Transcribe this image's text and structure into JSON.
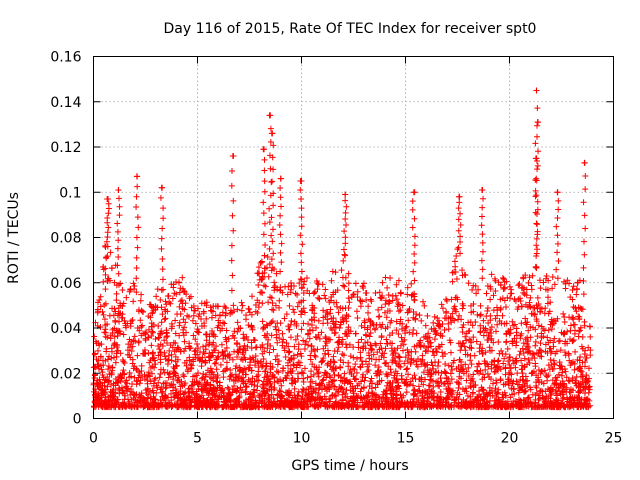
{
  "chart_data": {
    "type": "scatter",
    "title": "Day 116 of 2015, Rate Of TEC Index for receiver spt0",
    "xlabel": "GPS time / hours",
    "ylabel": "ROTI / TECUs",
    "xlim": [
      0,
      25
    ],
    "ylim": [
      0,
      0.16
    ],
    "x_ticks": [
      "0",
      "5",
      "10",
      "15",
      "20",
      "25"
    ],
    "y_ticks": [
      "0",
      "0.02",
      "0.04",
      "0.06",
      "0.08",
      "0.1",
      "0.12",
      "0.14",
      "0.16"
    ],
    "grid": true,
    "marker": "plus",
    "color": "#ff0000",
    "x_range_observed": [
      0,
      23.9
    ],
    "y_range_observed": [
      0.005,
      0.145
    ],
    "notable_peaks": [
      {
        "x": 0.7,
        "y": 0.097
      },
      {
        "x": 1.2,
        "y": 0.101
      },
      {
        "x": 2.1,
        "y": 0.107
      },
      {
        "x": 3.3,
        "y": 0.102
      },
      {
        "x": 6.7,
        "y": 0.116
      },
      {
        "x": 8.2,
        "y": 0.119
      },
      {
        "x": 8.5,
        "y": 0.134
      },
      {
        "x": 8.6,
        "y": 0.126
      },
      {
        "x": 9.0,
        "y": 0.106
      },
      {
        "x": 10.0,
        "y": 0.105
      },
      {
        "x": 12.1,
        "y": 0.099
      },
      {
        "x": 15.4,
        "y": 0.1
      },
      {
        "x": 17.6,
        "y": 0.098
      },
      {
        "x": 18.7,
        "y": 0.101
      },
      {
        "x": 21.3,
        "y": 0.145
      },
      {
        "x": 21.35,
        "y": 0.131
      },
      {
        "x": 21.3,
        "y": 0.115
      },
      {
        "x": 22.3,
        "y": 0.1
      },
      {
        "x": 23.6,
        "y": 0.113
      }
    ],
    "activity_profile": {
      "x": [
        0,
        0.5,
        1,
        1.5,
        2,
        2.5,
        3,
        3.5,
        4,
        4.5,
        5,
        5.5,
        6,
        6.5,
        7,
        7.5,
        8,
        8.5,
        9,
        9.5,
        10,
        10.5,
        11,
        11.5,
        12,
        12.5,
        13,
        13.5,
        14,
        14.5,
        15,
        15.5,
        16,
        16.5,
        17,
        17.5,
        18,
        18.5,
        19,
        19.5,
        20,
        20.5,
        21,
        21.5,
        22,
        22.5,
        23,
        23.5,
        23.9
      ],
      "y_upper": [
        0.035,
        0.08,
        0.07,
        0.055,
        0.065,
        0.05,
        0.06,
        0.055,
        0.065,
        0.06,
        0.05,
        0.055,
        0.05,
        0.05,
        0.05,
        0.055,
        0.07,
        0.075,
        0.065,
        0.06,
        0.065,
        0.065,
        0.06,
        0.065,
        0.075,
        0.06,
        0.06,
        0.055,
        0.065,
        0.06,
        0.065,
        0.06,
        0.05,
        0.045,
        0.06,
        0.075,
        0.065,
        0.06,
        0.065,
        0.065,
        0.06,
        0.06,
        0.07,
        0.065,
        0.065,
        0.06,
        0.065,
        0.06,
        0.04
      ]
    }
  }
}
